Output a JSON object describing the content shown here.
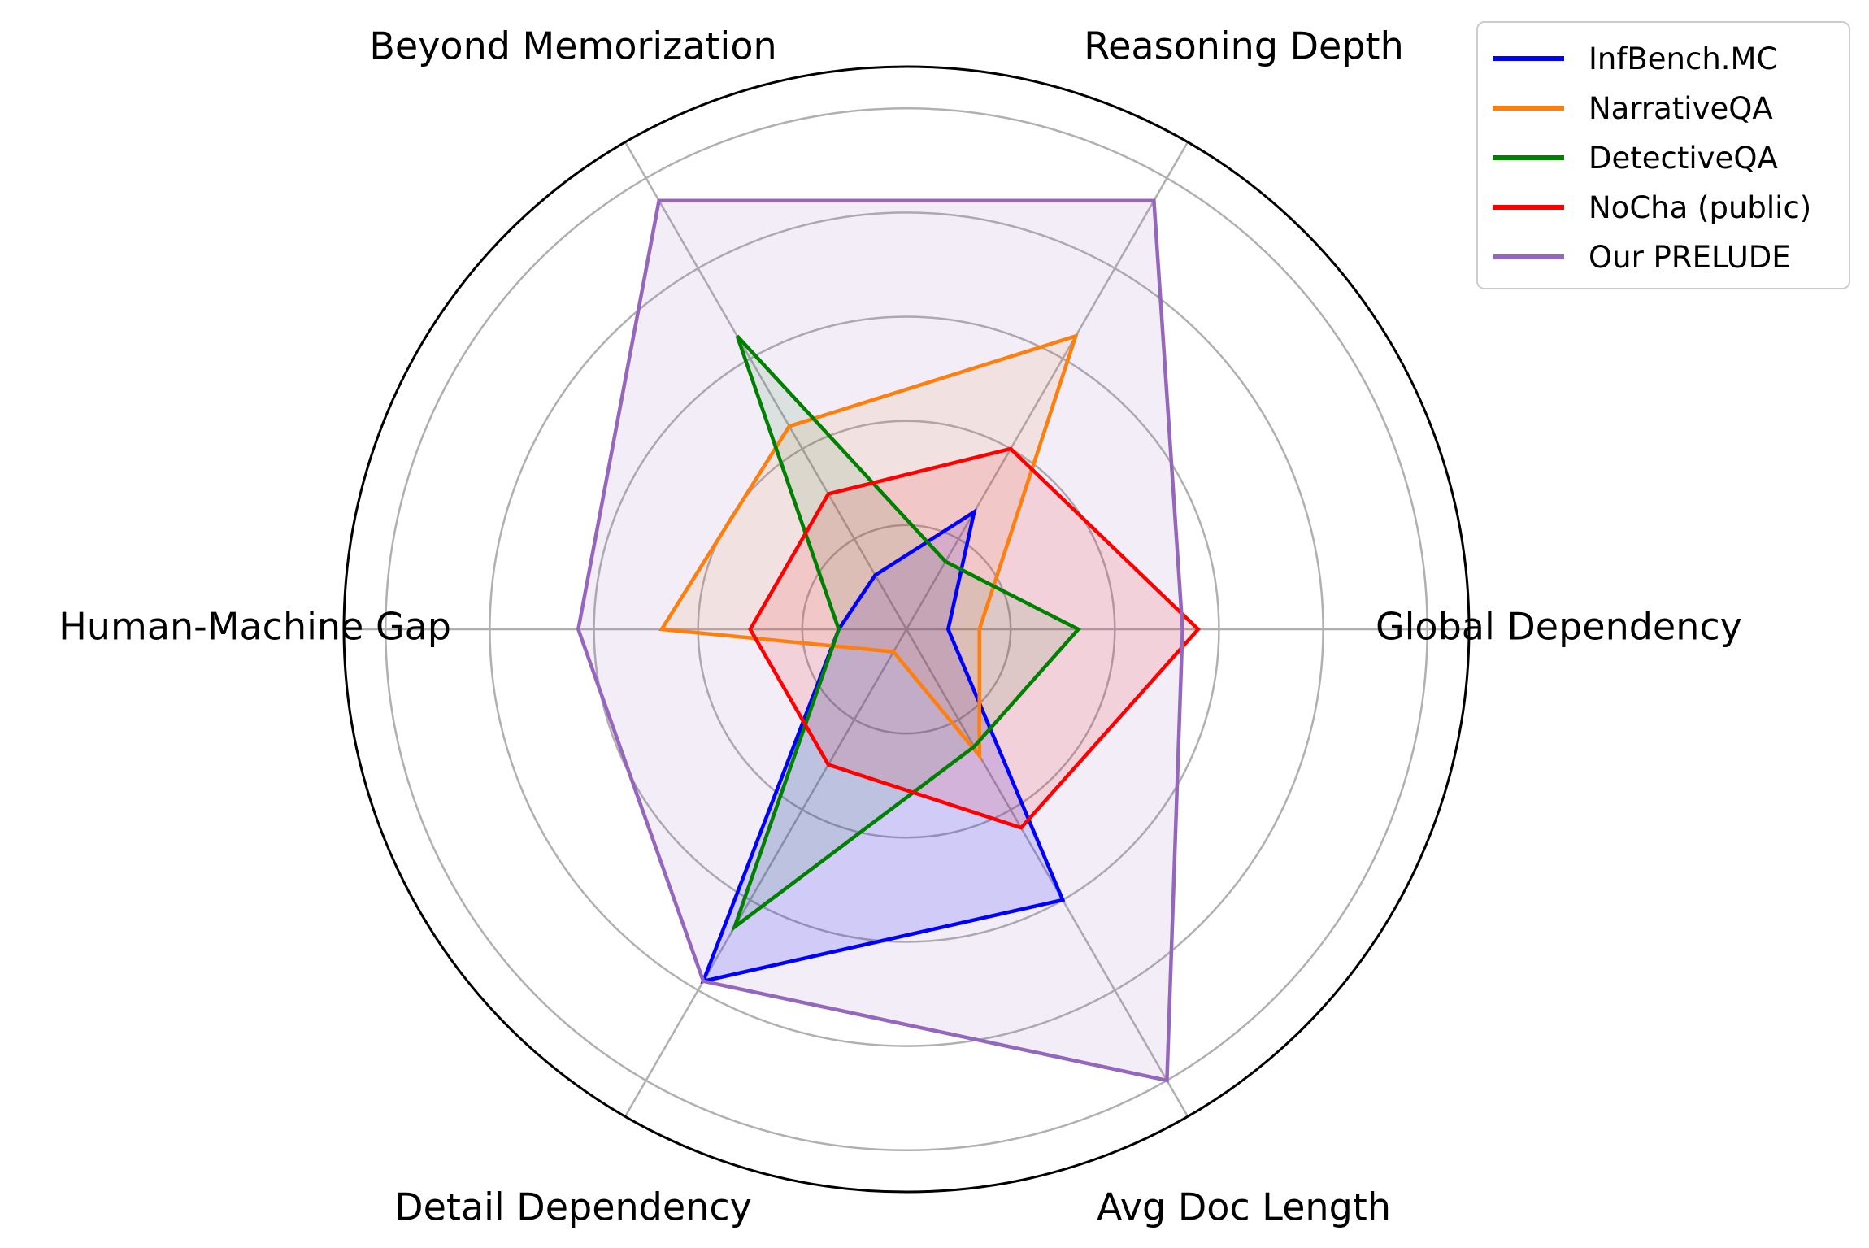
{
  "chart_data": {
    "type": "radar",
    "axes": [
      "Global Dependency",
      "Reasoning Depth",
      "Beyond Memorization",
      "Human-Machine Gap",
      "Detail Dependency",
      "Avg Doc Length"
    ],
    "rlim": [
      0,
      1.08
    ],
    "grid_rings": [
      0.2,
      0.4,
      0.6,
      0.8,
      1.0
    ],
    "grid": true,
    "legend_position": "top-right",
    "series": [
      {
        "name": "InfBench.MC",
        "color": "#0000ff",
        "values": [
          0.08,
          0.26,
          0.12,
          0.13,
          0.78,
          0.6
        ],
        "fill_opacity": 0.15
      },
      {
        "name": "NarrativeQA",
        "color": "#ff7f0e",
        "values": [
          0.14,
          0.65,
          0.45,
          0.47,
          0.05,
          0.28
        ],
        "fill_opacity": 0.1
      },
      {
        "name": "DetectiveQA",
        "color": "#008000",
        "values": [
          0.33,
          0.15,
          0.65,
          0.13,
          0.66,
          0.26
        ],
        "fill_opacity": 0.1
      },
      {
        "name": "NoCha (public)",
        "color": "#ff0000",
        "values": [
          0.56,
          0.4,
          0.3,
          0.3,
          0.3,
          0.44
        ],
        "fill_opacity": 0.12
      },
      {
        "name": "Our PRELUDE",
        "color": "#9467bd",
        "values": [
          0.53,
          0.95,
          0.95,
          0.63,
          0.78,
          1.0
        ],
        "fill_opacity": 0.12
      }
    ]
  }
}
